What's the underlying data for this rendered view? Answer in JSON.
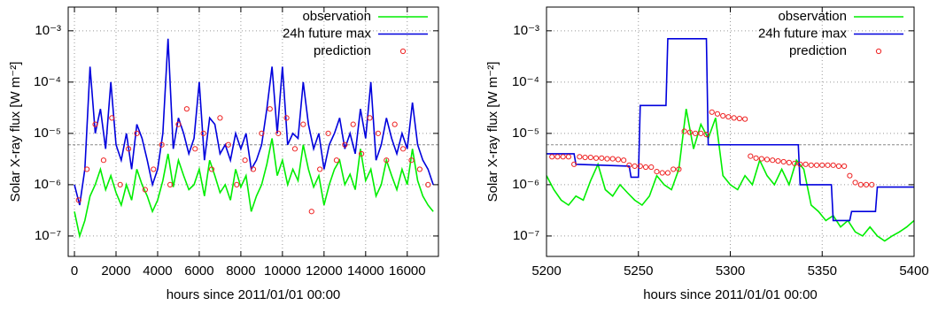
{
  "chart_data": [
    {
      "type": "line",
      "ylabel": "Solar X-ray flux [W m⁻²]",
      "xlabel": "hours since 2011/01/01 00:00",
      "ylog": true,
      "grid": true,
      "legend": "upper right",
      "reference_line": 6e-06,
      "xlim": [
        -300,
        17500
      ],
      "xticks": [
        0,
        2000,
        4000,
        6000,
        8000,
        10000,
        12000,
        14000,
        16000
      ],
      "ylim": [
        4e-08,
        0.0029
      ],
      "yticks": [
        {
          "value": 1e-07,
          "label": "10⁻⁷"
        },
        {
          "value": 1e-06,
          "label": "10⁻⁶"
        },
        {
          "value": 1e-05,
          "label": "10⁻⁵"
        },
        {
          "value": 0.0001,
          "label": "10⁻⁴"
        },
        {
          "value": 0.001,
          "label": "10⁻³"
        }
      ],
      "series": [
        {
          "name": "observation",
          "color": "#00ee00",
          "marker": "line",
          "x": [
            0,
            250,
            500,
            750,
            1000,
            1250,
            1500,
            1750,
            2000,
            2250,
            2500,
            2750,
            3000,
            3250,
            3500,
            3750,
            4000,
            4250,
            4500,
            4750,
            5000,
            5250,
            5500,
            5750,
            6000,
            6250,
            6500,
            6750,
            7000,
            7250,
            7500,
            7750,
            8000,
            8250,
            8500,
            8750,
            9000,
            9250,
            9500,
            9750,
            10000,
            10250,
            10500,
            10750,
            11000,
            11250,
            11500,
            11750,
            12000,
            12250,
            12500,
            12750,
            13000,
            13250,
            13500,
            13750,
            14000,
            14250,
            14500,
            14750,
            15000,
            15250,
            15500,
            15750,
            16000,
            16250,
            16500,
            16750,
            17000,
            17250
          ],
          "values": [
            3e-07,
            1e-07,
            2e-07,
            6e-07,
            1e-06,
            2e-06,
            8e-07,
            1.5e-06,
            7e-07,
            4e-07,
            1e-06,
            5e-07,
            2e-06,
            1e-06,
            6e-07,
            3e-07,
            5e-07,
            1.2e-06,
            4e-06,
            9e-07,
            3e-06,
            1.5e-06,
            8e-07,
            1e-06,
            2e-06,
            6e-07,
            3e-06,
            1.5e-06,
            7e-07,
            1e-06,
            5e-07,
            2e-06,
            9e-07,
            1.5e-06,
            3e-07,
            6e-07,
            1e-06,
            2.5e-06,
            8e-06,
            1.5e-06,
            3e-06,
            1e-06,
            2e-06,
            1.2e-06,
            6e-06,
            2e-06,
            9e-07,
            1.5e-06,
            4e-07,
            1e-06,
            2e-06,
            3e-06,
            1e-06,
            1.6e-06,
            8e-07,
            5e-06,
            1.2e-06,
            2e-06,
            6e-07,
            1e-06,
            3e-06,
            1.5e-06,
            8e-07,
            2e-06,
            1e-06,
            5e-06,
            1.2e-06,
            6e-07,
            4e-07,
            3e-07
          ]
        },
        {
          "name": "24h future max",
          "color": "#0000dd",
          "marker": "line",
          "x": [
            0,
            250,
            500,
            750,
            1000,
            1250,
            1500,
            1750,
            2000,
            2250,
            2500,
            2750,
            3000,
            3250,
            3500,
            3750,
            4000,
            4250,
            4500,
            4750,
            5000,
            5250,
            5500,
            5750,
            6000,
            6250,
            6500,
            6750,
            7000,
            7250,
            7500,
            7750,
            8000,
            8250,
            8500,
            8750,
            9000,
            9250,
            9500,
            9750,
            10000,
            10250,
            10500,
            10750,
            11000,
            11250,
            11500,
            11750,
            12000,
            12250,
            12500,
            12750,
            13000,
            13250,
            13500,
            13750,
            14000,
            14250,
            14500,
            14750,
            15000,
            15250,
            15500,
            15750,
            16000,
            16250,
            16500,
            16750,
            17000,
            17250
          ],
          "values": [
            1e-06,
            4e-07,
            2e-06,
            0.0002,
            1e-05,
            3e-05,
            5e-06,
            0.0001,
            6e-06,
            3e-06,
            1e-05,
            2e-06,
            1.5e-05,
            8e-06,
            3e-06,
            1e-06,
            2e-06,
            1e-05,
            0.0007,
            5e-06,
            2e-05,
            1e-05,
            4e-06,
            8e-06,
            0.0001,
            3e-06,
            2e-05,
            1.5e-05,
            4e-06,
            6e-06,
            3e-06,
            1e-05,
            5e-06,
            1e-05,
            2e-06,
            3e-06,
            6e-06,
            3e-05,
            0.0002,
            1e-05,
            0.0002,
            6e-06,
            1e-05,
            8e-06,
            0.0001,
            1.5e-05,
            5e-06,
            1e-05,
            2e-06,
            6e-06,
            1e-05,
            2e-05,
            5e-06,
            1e-05,
            4e-06,
            3e-05,
            8e-06,
            0.0001,
            3e-06,
            6e-06,
            2e-05,
            8e-06,
            4e-06,
            1e-05,
            5e-06,
            4e-05,
            6e-06,
            3e-06,
            2e-06,
            1e-06
          ]
        },
        {
          "name": "prediction",
          "color": "#ee2222",
          "marker": "circle",
          "x": [
            200,
            600,
            1000,
            1400,
            1800,
            2200,
            2600,
            3000,
            3400,
            3800,
            4200,
            4600,
            5000,
            5400,
            5800,
            6200,
            6600,
            7000,
            7400,
            7800,
            8200,
            8600,
            9000,
            9400,
            9800,
            10200,
            10600,
            11000,
            11400,
            11800,
            12200,
            12600,
            13000,
            13400,
            13800,
            14200,
            14600,
            15000,
            15400,
            15800,
            16200,
            16600,
            17000
          ],
          "values": [
            5e-07,
            2e-06,
            1.5e-05,
            3e-06,
            2e-05,
            1e-06,
            5e-06,
            1e-05,
            8e-07,
            2e-06,
            6e-06,
            1e-06,
            1.5e-05,
            3e-05,
            5e-06,
            1e-05,
            2e-06,
            2e-05,
            6e-06,
            1e-06,
            3e-06,
            2e-06,
            1e-05,
            3e-05,
            1e-05,
            2e-05,
            5e-06,
            1.5e-05,
            3e-07,
            2e-06,
            1e-05,
            3e-06,
            6e-06,
            1.5e-05,
            4e-06,
            2e-05,
            1e-05,
            3e-06,
            1.5e-05,
            5e-06,
            3e-06,
            2e-06,
            1e-06
          ]
        }
      ]
    },
    {
      "type": "line",
      "ylabel": "Solar X-ray flux [W m⁻²]",
      "xlabel": "hours since 2011/01/01 00:00",
      "ylog": true,
      "grid": true,
      "legend": "upper right",
      "reference_line": 6e-06,
      "xlim": [
        5200,
        5400
      ],
      "xticks": [
        5200,
        5250,
        5300,
        5350,
        5400
      ],
      "ylim": [
        4e-08,
        0.0029
      ],
      "yticks": [
        {
          "value": 1e-07,
          "label": "10⁻⁷"
        },
        {
          "value": 1e-06,
          "label": "10⁻⁶"
        },
        {
          "value": 1e-05,
          "label": "10⁻⁵"
        },
        {
          "value": 0.0001,
          "label": "10⁻⁴"
        },
        {
          "value": 0.001,
          "label": "10⁻³"
        }
      ],
      "series": [
        {
          "name": "observation",
          "color": "#00ee00",
          "marker": "line",
          "x": [
            5200,
            5204,
            5208,
            5212,
            5216,
            5220,
            5224,
            5228,
            5232,
            5236,
            5240,
            5244,
            5248,
            5252,
            5256,
            5260,
            5264,
            5268,
            5272,
            5276,
            5280,
            5284,
            5288,
            5292,
            5296,
            5300,
            5304,
            5308,
            5312,
            5316,
            5320,
            5324,
            5328,
            5332,
            5336,
            5340,
            5344,
            5348,
            5352,
            5356,
            5360,
            5364,
            5368,
            5372,
            5376,
            5380,
            5384,
            5388,
            5392,
            5396,
            5400
          ],
          "values": [
            1.5e-06,
            8e-07,
            5e-07,
            4e-07,
            6e-07,
            5e-07,
            1.2e-06,
            2.5e-06,
            8e-07,
            6e-07,
            1e-06,
            7e-07,
            5e-07,
            4e-07,
            6e-07,
            1.5e-06,
            1e-06,
            8e-07,
            2e-06,
            3e-05,
            5e-06,
            1.5e-05,
            8e-06,
            2e-05,
            1.5e-06,
            1e-06,
            8e-07,
            1.5e-06,
            1e-06,
            3e-06,
            1.5e-06,
            1e-06,
            2e-06,
            1e-06,
            3e-06,
            2e-06,
            4e-07,
            3e-07,
            2e-07,
            2.5e-07,
            1.5e-07,
            2e-07,
            1.2e-07,
            1e-07,
            1.5e-07,
            1e-07,
            8e-08,
            1e-07,
            1.2e-07,
            1.5e-07,
            2e-07
          ]
        },
        {
          "name": "24h future max",
          "color": "#0000dd",
          "marker": "line",
          "x": [
            5200,
            5215,
            5216,
            5245,
            5246,
            5250,
            5251,
            5265,
            5266,
            5287,
            5288,
            5337,
            5338,
            5355,
            5356,
            5365,
            5366,
            5379,
            5380,
            5400
          ],
          "values": [
            4e-06,
            4e-06,
            2.5e-06,
            2.3e-06,
            1.4e-06,
            1.4e-06,
            3.5e-05,
            3.5e-05,
            0.0007,
            0.0007,
            6e-06,
            6e-06,
            1e-06,
            1e-06,
            2e-07,
            2e-07,
            3e-07,
            3e-07,
            9e-07,
            9e-07
          ]
        },
        {
          "name": "prediction",
          "color": "#ee2222",
          "marker": "circle",
          "x": [
            5203,
            5206,
            5209,
            5212,
            5215,
            5218,
            5221,
            5224,
            5227,
            5230,
            5233,
            5236,
            5239,
            5242,
            5245,
            5248,
            5251,
            5254,
            5257,
            5260,
            5263,
            5266,
            5269,
            5272,
            5275,
            5278,
            5281,
            5284,
            5287,
            5290,
            5293,
            5296,
            5299,
            5302,
            5305,
            5308,
            5311,
            5314,
            5317,
            5320,
            5323,
            5326,
            5329,
            5332,
            5335,
            5338,
            5341,
            5344,
            5347,
            5350,
            5353,
            5356,
            5359,
            5362,
            5365,
            5368,
            5371,
            5374,
            5377
          ],
          "values": [
            3.5e-06,
            3.5e-06,
            3.5e-06,
            3.5e-06,
            2.5e-06,
            3.5e-06,
            3.4e-06,
            3.4e-06,
            3.3e-06,
            3.3e-06,
            3.2e-06,
            3.2e-06,
            3.1e-06,
            3e-06,
            2.4e-06,
            2.3e-06,
            2.3e-06,
            2.2e-06,
            2.2e-06,
            1.8e-06,
            1.7e-06,
            1.7e-06,
            2e-06,
            2e-06,
            1.1e-05,
            1.05e-05,
            1e-05,
            1e-05,
            9.5e-06,
            2.6e-05,
            2.4e-05,
            2.2e-05,
            2.1e-05,
            2e-05,
            1.95e-05,
            1.9e-05,
            3.6e-06,
            3.3e-06,
            3.2e-06,
            3.1e-06,
            3e-06,
            2.9e-06,
            2.8e-06,
            2.7e-06,
            2.6e-06,
            2.5e-06,
            2.5e-06,
            2.4e-06,
            2.4e-06,
            2.4e-06,
            2.4e-06,
            2.4e-06,
            2.3e-06,
            2.3e-06,
            1.5e-06,
            1.1e-06,
            1e-06,
            1e-06,
            1e-06
          ]
        }
      ]
    }
  ]
}
